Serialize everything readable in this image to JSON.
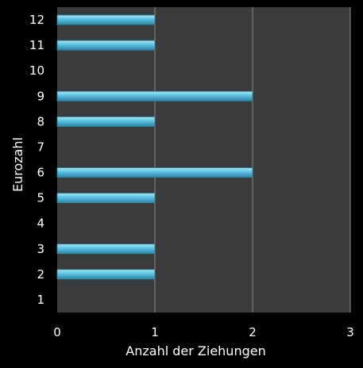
{
  "chart_data": {
    "type": "bar",
    "orientation": "horizontal",
    "categories": [
      "1",
      "2",
      "3",
      "4",
      "5",
      "6",
      "7",
      "8",
      "9",
      "10",
      "11",
      "12"
    ],
    "values": [
      0,
      1,
      1,
      0,
      1,
      2,
      0,
      1,
      2,
      0,
      1,
      1
    ],
    "xlabel": "Anzahl der Ziehungen",
    "ylabel": "Eurozahl",
    "xlim": [
      0,
      3
    ],
    "xticks": [
      "0",
      "1",
      "2",
      "3"
    ],
    "grid": "vertical",
    "colors": {
      "background": "#000000",
      "plot_area": "#3b3b3b",
      "gridline": "#8a8a8a",
      "bar": "#5bbfdf",
      "bar_highlight": "#a8e6f7",
      "bar_shadow": "#2a87a8",
      "text": "#ffffff"
    }
  }
}
